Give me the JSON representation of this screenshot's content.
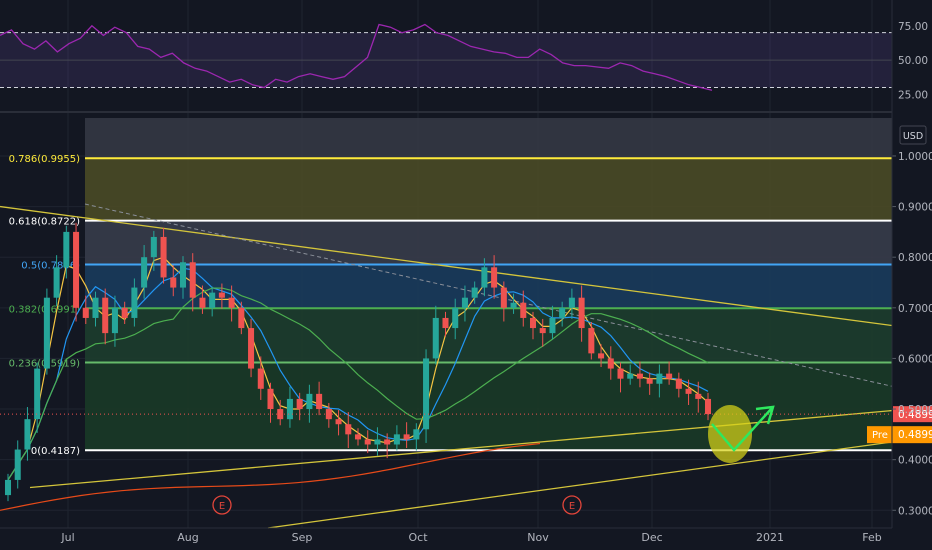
{
  "chart_data": [
    {
      "type": "line",
      "panel": "indicator",
      "name": "",
      "values": [
        68,
        72,
        62,
        58,
        64,
        56,
        62,
        66,
        75,
        68,
        74,
        70,
        60,
        58,
        52,
        55,
        48,
        44,
        42,
        38,
        34,
        36,
        32,
        30,
        36,
        34,
        38,
        40,
        38,
        36,
        38,
        45,
        52,
        76,
        74,
        70,
        72,
        76,
        70,
        68,
        64,
        60,
        58,
        56,
        55,
        52,
        52,
        58,
        54,
        48,
        46,
        46,
        45,
        44,
        48,
        46,
        42,
        40,
        38,
        35,
        32,
        30,
        28
      ],
      "ylim": [
        18,
        88
      ],
      "levels": [
        70,
        50,
        30
      ],
      "tick_labels": [
        "75.00",
        "50.00",
        "25.00"
      ],
      "colors": {
        "line": "#9c27b0",
        "band": "#7e57c2"
      }
    },
    {
      "type": "candlestick",
      "panel": "price",
      "currency_label": "USD",
      "y_ticks": [
        "1.0000",
        "0.9000",
        "0.8000",
        "0.7000",
        "0.6000",
        "0.5000",
        "0.4000",
        "0.3000"
      ],
      "ylim": [
        0.265,
        1.075
      ],
      "x_ticks": [
        "Jul",
        "Aug",
        "Sep",
        "Oct",
        "Nov",
        "Dec",
        "2021",
        "Feb"
      ],
      "price_label": "0.4899",
      "pre_label": "Pre",
      "pre_price": "0.4899",
      "earnings_marker": "E",
      "fib_levels": [
        {
          "label": "0.786(0.9955)",
          "value": 0.9955,
          "color": "#ffeb3b"
        },
        {
          "label": "0.618(0.8722)",
          "value": 0.8722,
          "color": "#ffffff"
        },
        {
          "label": "0.5(0.7856)",
          "value": 0.7856,
          "color": "#42a5f5"
        },
        {
          "label": "0.382(0.6991)",
          "value": 0.6991,
          "color": "#4caf50"
        },
        {
          "label": "0.236(0.5919)",
          "value": 0.5919,
          "color": "#66bb6a"
        },
        {
          "label": "0(0.4187)",
          "value": 0.4187,
          "color": "#ffffff"
        }
      ],
      "closes": [
        0.36,
        0.42,
        0.48,
        0.58,
        0.72,
        0.78,
        0.85,
        0.7,
        0.68,
        0.72,
        0.65,
        0.7,
        0.68,
        0.74,
        0.8,
        0.84,
        0.76,
        0.74,
        0.79,
        0.72,
        0.7,
        0.73,
        0.72,
        0.7,
        0.66,
        0.58,
        0.54,
        0.5,
        0.48,
        0.52,
        0.5,
        0.53,
        0.5,
        0.48,
        0.47,
        0.45,
        0.44,
        0.43,
        0.44,
        0.43,
        0.45,
        0.44,
        0.46,
        0.6,
        0.68,
        0.66,
        0.7,
        0.72,
        0.74,
        0.78,
        0.74,
        0.7,
        0.71,
        0.68,
        0.66,
        0.65,
        0.68,
        0.7,
        0.72,
        0.66,
        0.61,
        0.6,
        0.58,
        0.56,
        0.57,
        0.56,
        0.55,
        0.57,
        0.56,
        0.54,
        0.53,
        0.52,
        0.49
      ],
      "colors": {
        "up": "#26a69a",
        "down": "#ef5350"
      }
    }
  ]
}
